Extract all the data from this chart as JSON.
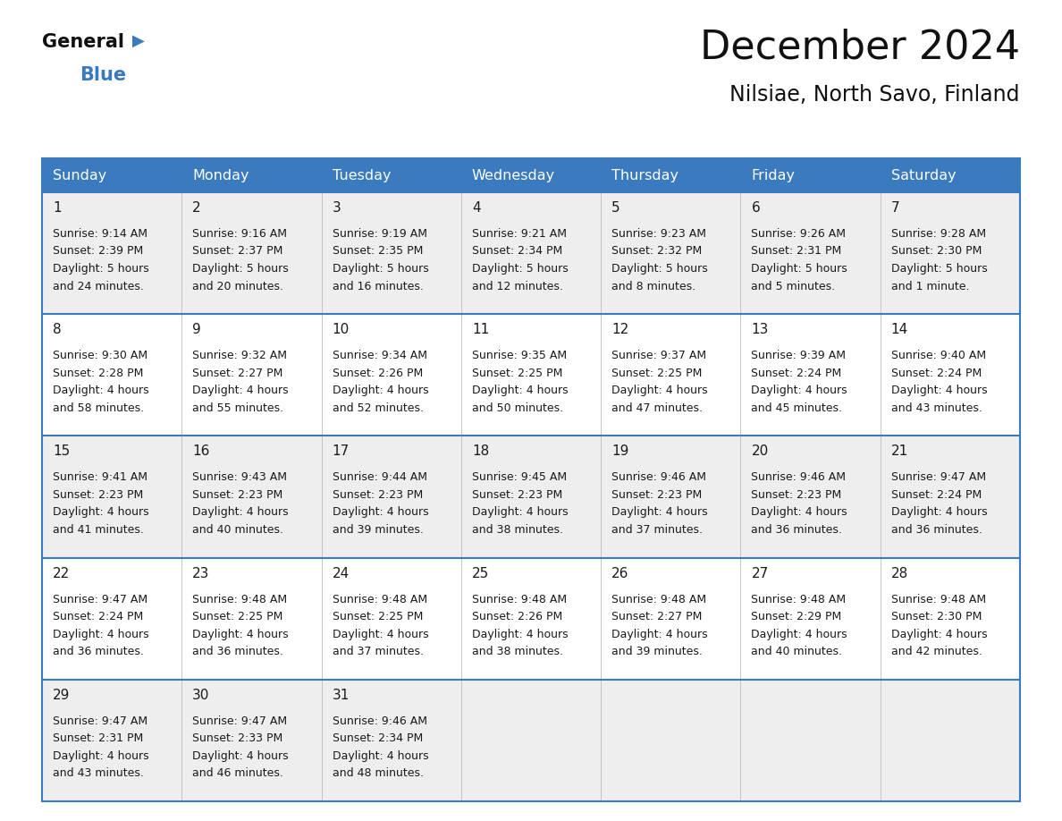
{
  "title": "December 2024",
  "subtitle": "Nilsiae, North Savo, Finland",
  "header_color": "#3a7abf",
  "header_text_color": "#ffffff",
  "cell_bg_even": "#eeeeee",
  "cell_bg_odd": "#ffffff",
  "border_color": "#3a7abf",
  "text_color": "#1a1a1a",
  "day_headers": [
    "Sunday",
    "Monday",
    "Tuesday",
    "Wednesday",
    "Thursday",
    "Friday",
    "Saturday"
  ],
  "days": [
    {
      "day": 1,
      "col": 0,
      "row": 0,
      "sunrise": "9:14 AM",
      "sunset": "2:39 PM",
      "daylight_line1": "Daylight: 5 hours",
      "daylight_line2": "and 24 minutes."
    },
    {
      "day": 2,
      "col": 1,
      "row": 0,
      "sunrise": "9:16 AM",
      "sunset": "2:37 PM",
      "daylight_line1": "Daylight: 5 hours",
      "daylight_line2": "and 20 minutes."
    },
    {
      "day": 3,
      "col": 2,
      "row": 0,
      "sunrise": "9:19 AM",
      "sunset": "2:35 PM",
      "daylight_line1": "Daylight: 5 hours",
      "daylight_line2": "and 16 minutes."
    },
    {
      "day": 4,
      "col": 3,
      "row": 0,
      "sunrise": "9:21 AM",
      "sunset": "2:34 PM",
      "daylight_line1": "Daylight: 5 hours",
      "daylight_line2": "and 12 minutes."
    },
    {
      "day": 5,
      "col": 4,
      "row": 0,
      "sunrise": "9:23 AM",
      "sunset": "2:32 PM",
      "daylight_line1": "Daylight: 5 hours",
      "daylight_line2": "and 8 minutes."
    },
    {
      "day": 6,
      "col": 5,
      "row": 0,
      "sunrise": "9:26 AM",
      "sunset": "2:31 PM",
      "daylight_line1": "Daylight: 5 hours",
      "daylight_line2": "and 5 minutes."
    },
    {
      "day": 7,
      "col": 6,
      "row": 0,
      "sunrise": "9:28 AM",
      "sunset": "2:30 PM",
      "daylight_line1": "Daylight: 5 hours",
      "daylight_line2": "and 1 minute."
    },
    {
      "day": 8,
      "col": 0,
      "row": 1,
      "sunrise": "9:30 AM",
      "sunset": "2:28 PM",
      "daylight_line1": "Daylight: 4 hours",
      "daylight_line2": "and 58 minutes."
    },
    {
      "day": 9,
      "col": 1,
      "row": 1,
      "sunrise": "9:32 AM",
      "sunset": "2:27 PM",
      "daylight_line1": "Daylight: 4 hours",
      "daylight_line2": "and 55 minutes."
    },
    {
      "day": 10,
      "col": 2,
      "row": 1,
      "sunrise": "9:34 AM",
      "sunset": "2:26 PM",
      "daylight_line1": "Daylight: 4 hours",
      "daylight_line2": "and 52 minutes."
    },
    {
      "day": 11,
      "col": 3,
      "row": 1,
      "sunrise": "9:35 AM",
      "sunset": "2:25 PM",
      "daylight_line1": "Daylight: 4 hours",
      "daylight_line2": "and 50 minutes."
    },
    {
      "day": 12,
      "col": 4,
      "row": 1,
      "sunrise": "9:37 AM",
      "sunset": "2:25 PM",
      "daylight_line1": "Daylight: 4 hours",
      "daylight_line2": "and 47 minutes."
    },
    {
      "day": 13,
      "col": 5,
      "row": 1,
      "sunrise": "9:39 AM",
      "sunset": "2:24 PM",
      "daylight_line1": "Daylight: 4 hours",
      "daylight_line2": "and 45 minutes."
    },
    {
      "day": 14,
      "col": 6,
      "row": 1,
      "sunrise": "9:40 AM",
      "sunset": "2:24 PM",
      "daylight_line1": "Daylight: 4 hours",
      "daylight_line2": "and 43 minutes."
    },
    {
      "day": 15,
      "col": 0,
      "row": 2,
      "sunrise": "9:41 AM",
      "sunset": "2:23 PM",
      "daylight_line1": "Daylight: 4 hours",
      "daylight_line2": "and 41 minutes."
    },
    {
      "day": 16,
      "col": 1,
      "row": 2,
      "sunrise": "9:43 AM",
      "sunset": "2:23 PM",
      "daylight_line1": "Daylight: 4 hours",
      "daylight_line2": "and 40 minutes."
    },
    {
      "day": 17,
      "col": 2,
      "row": 2,
      "sunrise": "9:44 AM",
      "sunset": "2:23 PM",
      "daylight_line1": "Daylight: 4 hours",
      "daylight_line2": "and 39 minutes."
    },
    {
      "day": 18,
      "col": 3,
      "row": 2,
      "sunrise": "9:45 AM",
      "sunset": "2:23 PM",
      "daylight_line1": "Daylight: 4 hours",
      "daylight_line2": "and 38 minutes."
    },
    {
      "day": 19,
      "col": 4,
      "row": 2,
      "sunrise": "9:46 AM",
      "sunset": "2:23 PM",
      "daylight_line1": "Daylight: 4 hours",
      "daylight_line2": "and 37 minutes."
    },
    {
      "day": 20,
      "col": 5,
      "row": 2,
      "sunrise": "9:46 AM",
      "sunset": "2:23 PM",
      "daylight_line1": "Daylight: 4 hours",
      "daylight_line2": "and 36 minutes."
    },
    {
      "day": 21,
      "col": 6,
      "row": 2,
      "sunrise": "9:47 AM",
      "sunset": "2:24 PM",
      "daylight_line1": "Daylight: 4 hours",
      "daylight_line2": "and 36 minutes."
    },
    {
      "day": 22,
      "col": 0,
      "row": 3,
      "sunrise": "9:47 AM",
      "sunset": "2:24 PM",
      "daylight_line1": "Daylight: 4 hours",
      "daylight_line2": "and 36 minutes."
    },
    {
      "day": 23,
      "col": 1,
      "row": 3,
      "sunrise": "9:48 AM",
      "sunset": "2:25 PM",
      "daylight_line1": "Daylight: 4 hours",
      "daylight_line2": "and 36 minutes."
    },
    {
      "day": 24,
      "col": 2,
      "row": 3,
      "sunrise": "9:48 AM",
      "sunset": "2:25 PM",
      "daylight_line1": "Daylight: 4 hours",
      "daylight_line2": "and 37 minutes."
    },
    {
      "day": 25,
      "col": 3,
      "row": 3,
      "sunrise": "9:48 AM",
      "sunset": "2:26 PM",
      "daylight_line1": "Daylight: 4 hours",
      "daylight_line2": "and 38 minutes."
    },
    {
      "day": 26,
      "col": 4,
      "row": 3,
      "sunrise": "9:48 AM",
      "sunset": "2:27 PM",
      "daylight_line1": "Daylight: 4 hours",
      "daylight_line2": "and 39 minutes."
    },
    {
      "day": 27,
      "col": 5,
      "row": 3,
      "sunrise": "9:48 AM",
      "sunset": "2:29 PM",
      "daylight_line1": "Daylight: 4 hours",
      "daylight_line2": "and 40 minutes."
    },
    {
      "day": 28,
      "col": 6,
      "row": 3,
      "sunrise": "9:48 AM",
      "sunset": "2:30 PM",
      "daylight_line1": "Daylight: 4 hours",
      "daylight_line2": "and 42 minutes."
    },
    {
      "day": 29,
      "col": 0,
      "row": 4,
      "sunrise": "9:47 AM",
      "sunset": "2:31 PM",
      "daylight_line1": "Daylight: 4 hours",
      "daylight_line2": "and 43 minutes."
    },
    {
      "day": 30,
      "col": 1,
      "row": 4,
      "sunrise": "9:47 AM",
      "sunset": "2:33 PM",
      "daylight_line1": "Daylight: 4 hours",
      "daylight_line2": "and 46 minutes."
    },
    {
      "day": 31,
      "col": 2,
      "row": 4,
      "sunrise": "9:46 AM",
      "sunset": "2:34 PM",
      "daylight_line1": "Daylight: 4 hours",
      "daylight_line2": "and 48 minutes."
    }
  ],
  "fig_width": 11.88,
  "fig_height": 9.18,
  "dpi": 100
}
